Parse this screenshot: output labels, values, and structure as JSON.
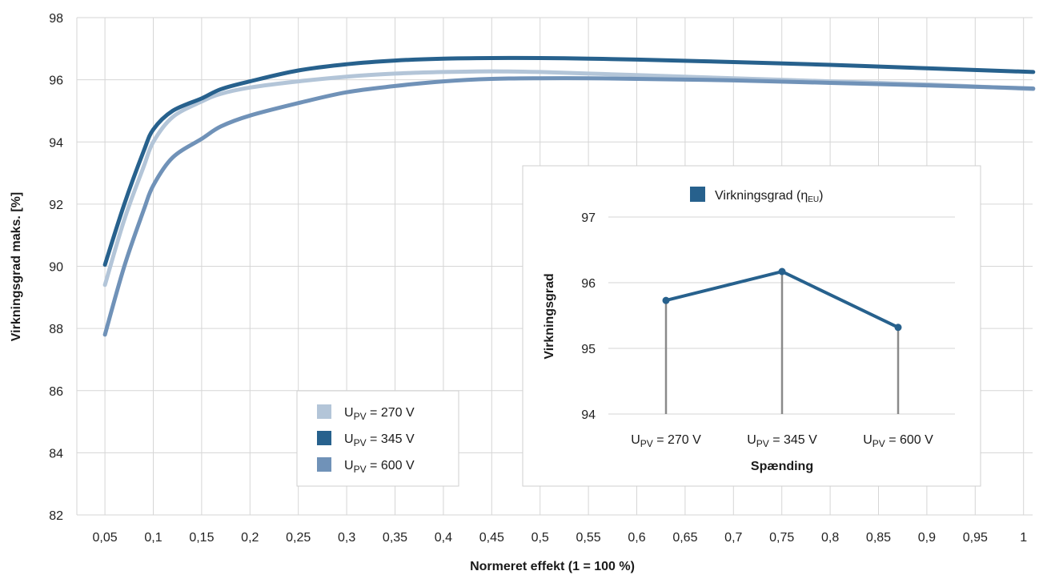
{
  "main_chart": {
    "chart_data": {
      "type": "line",
      "xlabel": "Normeret effekt (1 = 100 %)",
      "ylabel": "Virkningsgrad maks. [%]",
      "xlim": [
        0.0,
        1.01
      ],
      "ylim": [
        82,
        98
      ],
      "y_ticks": [
        "82",
        "84",
        "86",
        "88",
        "90",
        "92",
        "94",
        "96",
        "98"
      ],
      "y_tick_values": [
        82,
        84,
        86,
        88,
        90,
        92,
        94,
        96,
        98
      ],
      "x_ticks": [
        "0,05",
        "0,1",
        "0,15",
        "0,2",
        "0,25",
        "0,3",
        "0,35",
        "0,4",
        "0,45",
        "0,5",
        "0,55",
        "0,6",
        "0,65",
        "0,7",
        "0,75",
        "0,8",
        "0,85",
        "0,9",
        "0,95",
        "1"
      ],
      "x_tick_values": [
        0.05,
        0.1,
        0.15,
        0.2,
        0.25,
        0.3,
        0.35,
        0.4,
        0.45,
        0.5,
        0.55,
        0.6,
        0.65,
        0.7,
        0.75,
        0.8,
        0.85,
        0.9,
        0.95,
        1.0
      ],
      "grid": true,
      "legend_position": "bottom-left",
      "series": [
        {
          "name_main": "U",
          "name_sub": "PV",
          "name_rest": " = 270 V",
          "color": "#b3c5d8",
          "x": [
            0.05,
            0.07,
            0.09,
            0.1,
            0.12,
            0.15,
            0.17,
            0.2,
            0.25,
            0.3,
            0.35,
            0.4,
            0.45,
            0.5,
            0.55,
            0.6,
            0.7,
            0.8,
            0.9,
            1.01
          ],
          "y": [
            89.4,
            91.5,
            93.2,
            94.0,
            94.8,
            95.3,
            95.55,
            95.75,
            95.95,
            96.1,
            96.2,
            96.25,
            96.27,
            96.25,
            96.2,
            96.15,
            96.05,
            95.95,
            95.85,
            95.7
          ]
        },
        {
          "name_main": "U",
          "name_sub": "PV",
          "name_rest": " = 345 V",
          "color": "#27618d",
          "x": [
            0.05,
            0.07,
            0.09,
            0.1,
            0.12,
            0.15,
            0.17,
            0.2,
            0.25,
            0.3,
            0.35,
            0.4,
            0.45,
            0.5,
            0.55,
            0.6,
            0.7,
            0.8,
            0.9,
            1.01
          ],
          "y": [
            90.05,
            92.0,
            93.7,
            94.4,
            95.0,
            95.4,
            95.7,
            95.95,
            96.3,
            96.5,
            96.62,
            96.68,
            96.7,
            96.7,
            96.68,
            96.65,
            96.57,
            96.48,
            96.37,
            96.25
          ]
        },
        {
          "name_main": "U",
          "name_sub": "PV",
          "name_rest": " = 600 V",
          "color": "#7092b8",
          "x": [
            0.05,
            0.07,
            0.09,
            0.1,
            0.12,
            0.15,
            0.17,
            0.2,
            0.25,
            0.3,
            0.35,
            0.4,
            0.45,
            0.5,
            0.55,
            0.6,
            0.7,
            0.8,
            0.9,
            1.01
          ],
          "y": [
            87.8,
            90.0,
            91.8,
            92.6,
            93.5,
            94.1,
            94.5,
            94.85,
            95.25,
            95.6,
            95.8,
            95.95,
            96.03,
            96.05,
            96.05,
            96.03,
            95.98,
            95.9,
            95.82,
            95.72
          ]
        }
      ]
    }
  },
  "inset_chart": {
    "chart_data": {
      "type": "line",
      "xlabel": "Spænding",
      "ylabel": "Virkningsgrad",
      "ylim": [
        94,
        97.4
      ],
      "y_ticks": [
        "94",
        "95",
        "96",
        "97"
      ],
      "y_tick_values": [
        94,
        95,
        96,
        97
      ],
      "categories": [
        {
          "main": "U",
          "sub": "PV",
          "rest": " = 270 V"
        },
        {
          "main": "U",
          "sub": "PV",
          "rest": " = 345 V"
        },
        {
          "main": "U",
          "sub": "PV",
          "rest": " = 600 V"
        }
      ],
      "legend_position": "top-center",
      "series": [
        {
          "name_main": "Virkningsgrad (η",
          "name_sub": "EU",
          "name_rest": ")",
          "color": "#27618d",
          "values": [
            95.73,
            96.17,
            95.32
          ]
        }
      ]
    }
  }
}
